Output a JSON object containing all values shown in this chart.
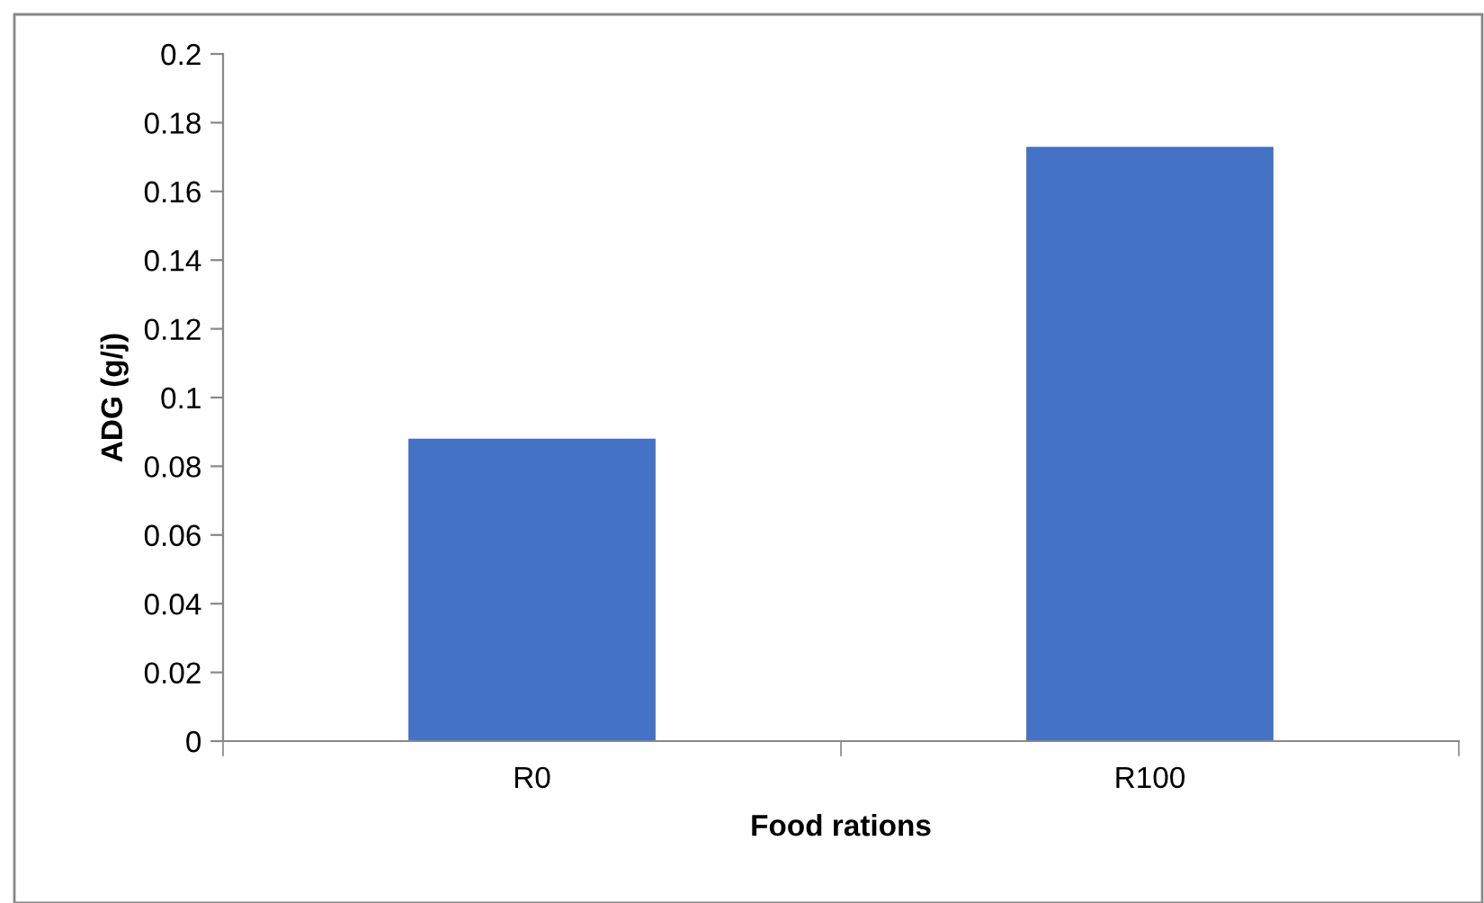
{
  "chart_data": {
    "type": "bar",
    "xlabel": "Food rations",
    "ylabel": "ADG (g/j)",
    "categories": [
      "R0",
      "R100"
    ],
    "values": [
      0.088,
      0.173
    ],
    "color": "#4472c4",
    "ylim": [
      0,
      0.2
    ],
    "yticks": [
      0,
      0.02,
      0.04,
      0.06,
      0.08,
      0.1,
      0.12,
      0.14,
      0.16,
      0.18,
      0.2
    ],
    "grid": false
  }
}
